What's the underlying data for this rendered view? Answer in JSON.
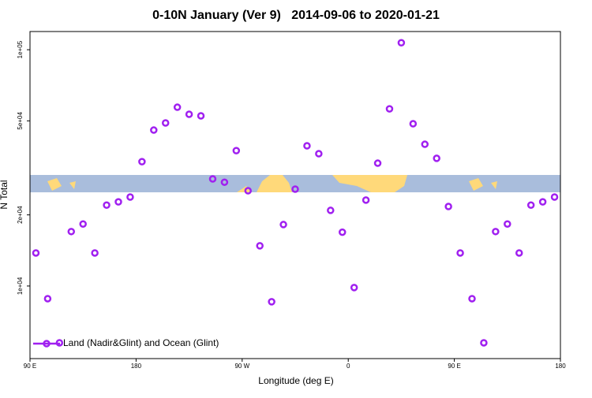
{
  "chart_data": {
    "type": "scatter",
    "title": "0-10N January (Ver 9)   2014-09-06 to 2020-01-21",
    "x_label": "Longitude (deg E)",
    "y_label": "N Total",
    "x": [
      95,
      105,
      115,
      125,
      135,
      145,
      155,
      165,
      175,
      185,
      195,
      205,
      215,
      225,
      235,
      245,
      255,
      265,
      275,
      285,
      295,
      305,
      315,
      325,
      335,
      345,
      355,
      365,
      375,
      385,
      395,
      405,
      415,
      425,
      435,
      445,
      455,
      465,
      475,
      485,
      495,
      505,
      515,
      525,
      535
    ],
    "series": [
      {
        "name": "Land (Nadir&Glint) and Ocean (Glint)",
        "color": "#a020f0",
        "values": [
          13800,
          8840,
          5750,
          17000,
          18300,
          13800,
          22000,
          22700,
          23800,
          33600,
          45700,
          49000,
          57100,
          53300,
          52500,
          28400,
          27500,
          37400,
          25300,
          14800,
          8580,
          18200,
          25700,
          39200,
          36300,
          20900,
          16900,
          9850,
          23100,
          33100,
          56200,
          107000,
          48600,
          39800,
          34700,
          21700,
          13800,
          8840,
          5750,
          17000,
          18300,
          13800,
          22000,
          22700,
          23800
        ]
      }
    ],
    "xlim": [
      90,
      540
    ],
    "xticks": [
      {
        "value": 90,
        "label": "90 E"
      },
      {
        "value": 180,
        "label": "180"
      },
      {
        "value": 270,
        "label": "90 W"
      },
      {
        "value": 360,
        "label": "0"
      },
      {
        "value": 450,
        "label": "90 E"
      },
      {
        "value": 540,
        "label": "180"
      }
    ],
    "ylim": [
      4930,
      119400
    ],
    "yticks": [
      {
        "value": 10000,
        "label": "1e+04"
      },
      {
        "value": 20000,
        "label": "2e+04"
      },
      {
        "value": 50000,
        "label": "5e+04"
      },
      {
        "value": 100000,
        "label": "1e+05"
      }
    ],
    "ylog": true,
    "legend": "bottomleft"
  }
}
